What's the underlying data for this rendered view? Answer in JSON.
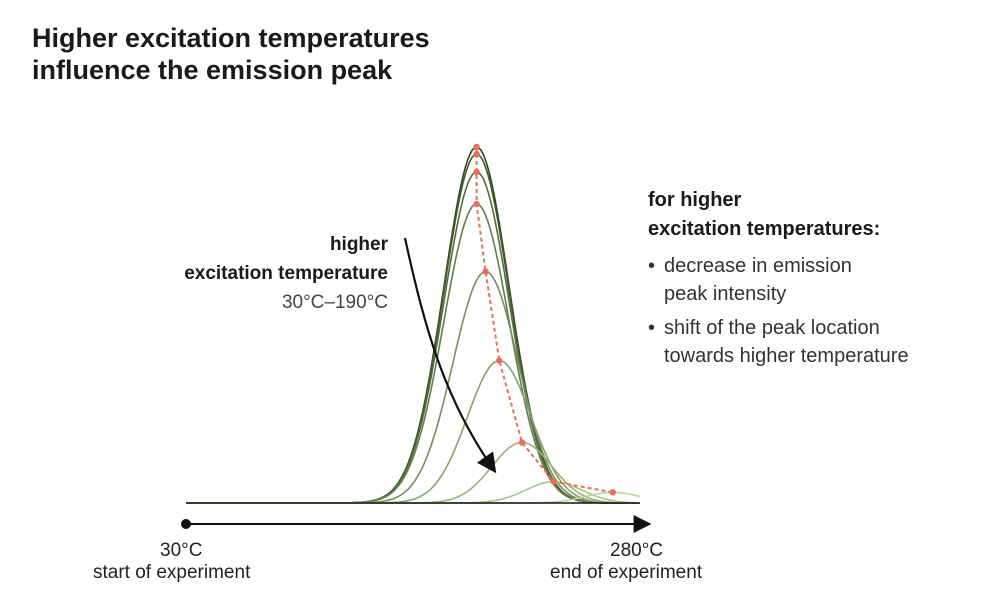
{
  "title": {
    "line1": "Higher excitation temperatures",
    "line2": "influence the emission peak"
  },
  "arrow_annotation": {
    "line1": "higher",
    "line2": "excitation temperature",
    "line3": "30°C–190°C"
  },
  "side_panel": {
    "heading_line1": "for higher",
    "heading_line2": "excitation temperatures:",
    "bullets": [
      {
        "line1": "decrease in emission",
        "line2": "peak intensity"
      },
      {
        "line1": "shift of the peak location",
        "line2": "towards higher temperature"
      }
    ]
  },
  "x_axis": {
    "start_value": "30°C",
    "start_label": "start of experiment",
    "end_value": "280°C",
    "end_label": "end of experiment"
  },
  "colors": {
    "dark_green": "#2f4a1e",
    "light_green": "#b9d59a",
    "peak_trace": "#e8705a",
    "axis": "#111111"
  },
  "chart_data": {
    "type": "line",
    "title": "Higher excitation temperatures influence the emission peak",
    "xlabel": "",
    "ylabel": "",
    "x_range_label": [
      "30°C",
      "280°C"
    ],
    "note": "",
    "series": [
      {
        "peak_x": 0.64,
        "peak_y": 1.0,
        "width": 0.072
      },
      {
        "peak_x": 0.64,
        "peak_y": 0.98,
        "width": 0.072
      },
      {
        "peak_x": 0.64,
        "peak_y": 0.93,
        "width": 0.072
      },
      {
        "peak_x": 0.64,
        "peak_y": 0.84,
        "width": 0.072
      },
      {
        "peak_x": 0.66,
        "peak_y": 0.65,
        "width": 0.072
      },
      {
        "peak_x": 0.69,
        "peak_y": 0.4,
        "width": 0.07
      },
      {
        "peak_x": 0.74,
        "peak_y": 0.17,
        "width": 0.066
      },
      {
        "peak_x": 0.81,
        "peak_y": 0.06,
        "width": 0.062
      },
      {
        "peak_x": 0.94,
        "peak_y": 0.03,
        "width": 0.06
      }
    ]
  }
}
